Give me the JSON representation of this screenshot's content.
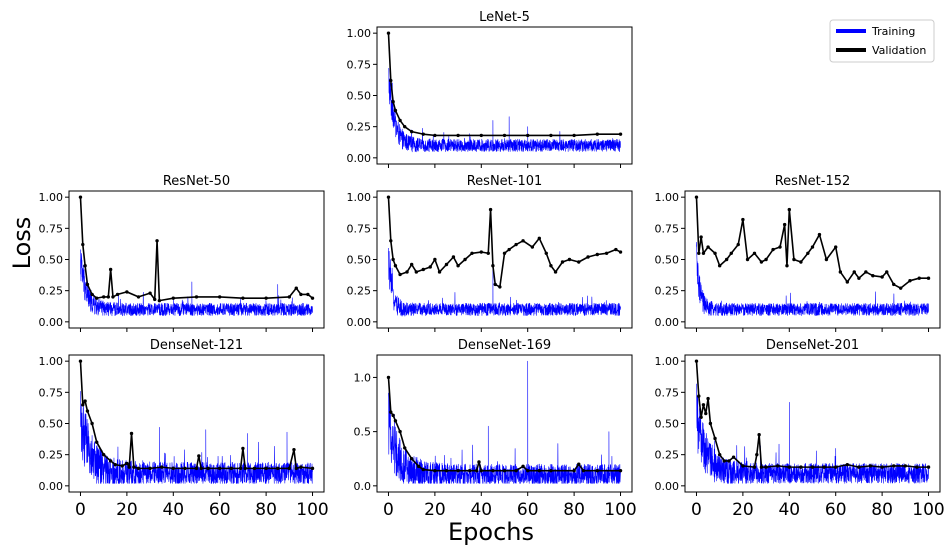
{
  "figure": {
    "ylabel": "Loss",
    "xlabel": "Epochs",
    "legend": {
      "placement": "top-right",
      "entries": [
        {
          "label": "Training",
          "color": "#0000ff"
        },
        {
          "label": "Validation",
          "color": "#000000"
        }
      ]
    }
  },
  "chart_data": [
    {
      "type": "line",
      "title": "LeNet-5",
      "xlim": [
        0,
        100
      ],
      "ylim": [
        0,
        1
      ],
      "yticks": [
        "0.00",
        "0.25",
        "0.50",
        "0.75",
        "1.00"
      ],
      "series": [
        {
          "name": "Training",
          "color": "#0000ff",
          "style": "noisy",
          "base": 0.1,
          "start": 0.65,
          "decay": 2.5,
          "noise": 0.05,
          "spikes": [
            [
              45,
              0.3
            ],
            [
              52,
              0.33
            ],
            [
              60,
              0.25
            ]
          ]
        },
        {
          "name": "Validation",
          "color": "#000000",
          "x": [
            0,
            1,
            2,
            3,
            5,
            7,
            10,
            15,
            20,
            30,
            40,
            50,
            60,
            70,
            80,
            90,
            100
          ],
          "y": [
            1.0,
            0.62,
            0.45,
            0.38,
            0.3,
            0.25,
            0.21,
            0.19,
            0.18,
            0.18,
            0.18,
            0.18,
            0.18,
            0.18,
            0.18,
            0.19,
            0.19
          ]
        }
      ]
    },
    {
      "type": "line",
      "title": "ResNet-50",
      "xlim": [
        0,
        100
      ],
      "ylim": [
        0,
        1
      ],
      "yticks": [
        "0.00",
        "0.25",
        "0.50",
        "0.75",
        "1.00"
      ],
      "series": [
        {
          "name": "Training",
          "color": "#0000ff",
          "style": "noisy",
          "base": 0.1,
          "start": 0.5,
          "decay": 2.5,
          "noise": 0.05,
          "spikes": [
            [
              48,
              0.32
            ],
            [
              85,
              0.3
            ]
          ]
        },
        {
          "name": "Validation",
          "color": "#000000",
          "x": [
            0,
            1,
            2,
            3,
            5,
            7,
            10,
            12,
            13,
            14,
            16,
            20,
            25,
            30,
            32,
            33,
            34,
            40,
            50,
            60,
            70,
            80,
            90,
            93,
            95,
            98,
            100
          ],
          "y": [
            1.0,
            0.62,
            0.45,
            0.3,
            0.22,
            0.19,
            0.2,
            0.2,
            0.42,
            0.2,
            0.22,
            0.24,
            0.2,
            0.23,
            0.18,
            0.65,
            0.17,
            0.19,
            0.2,
            0.2,
            0.19,
            0.19,
            0.2,
            0.27,
            0.22,
            0.22,
            0.19
          ]
        }
      ]
    },
    {
      "type": "line",
      "title": "ResNet-101",
      "xlim": [
        0,
        100
      ],
      "ylim": [
        0,
        1
      ],
      "yticks": [
        "0.00",
        "0.25",
        "0.50",
        "0.75",
        "1.00"
      ],
      "series": [
        {
          "name": "Training",
          "color": "#0000ff",
          "style": "noisy",
          "base": 0.1,
          "start": 0.5,
          "decay": 1.5,
          "noise": 0.05,
          "spikes": [
            [
              45,
              0.45
            ]
          ]
        },
        {
          "name": "Validation",
          "color": "#000000",
          "x": [
            0,
            1,
            2,
            3,
            5,
            8,
            10,
            12,
            15,
            18,
            20,
            22,
            25,
            28,
            30,
            33,
            36,
            40,
            43,
            44,
            45,
            46,
            48,
            50,
            52,
            55,
            58,
            62,
            65,
            68,
            70,
            72,
            75,
            78,
            82,
            86,
            90,
            94,
            98,
            100
          ],
          "y": [
            1.0,
            0.65,
            0.5,
            0.45,
            0.38,
            0.4,
            0.46,
            0.4,
            0.42,
            0.44,
            0.5,
            0.4,
            0.46,
            0.52,
            0.45,
            0.5,
            0.55,
            0.56,
            0.55,
            0.9,
            0.45,
            0.3,
            0.28,
            0.55,
            0.58,
            0.62,
            0.65,
            0.6,
            0.67,
            0.55,
            0.45,
            0.4,
            0.48,
            0.5,
            0.48,
            0.52,
            0.54,
            0.55,
            0.58,
            0.56
          ]
        }
      ]
    },
    {
      "type": "line",
      "title": "ResNet-152",
      "xlim": [
        0,
        100
      ],
      "ylim": [
        0,
        1
      ],
      "yticks": [
        "0.00",
        "0.25",
        "0.50",
        "0.75",
        "1.00"
      ],
      "series": [
        {
          "name": "Training",
          "color": "#0000ff",
          "style": "noisy",
          "base": 0.1,
          "start": 0.5,
          "decay": 1.5,
          "noise": 0.05,
          "spikes": []
        },
        {
          "name": "Validation",
          "color": "#000000",
          "x": [
            0,
            1,
            2,
            3,
            5,
            8,
            10,
            13,
            15,
            18,
            20,
            22,
            25,
            28,
            30,
            33,
            36,
            38,
            39,
            40,
            42,
            45,
            48,
            50,
            53,
            56,
            60,
            62,
            65,
            68,
            70,
            73,
            76,
            80,
            82,
            85,
            88,
            92,
            96,
            100
          ],
          "y": [
            1.0,
            0.55,
            0.68,
            0.55,
            0.6,
            0.55,
            0.45,
            0.5,
            0.55,
            0.62,
            0.82,
            0.5,
            0.55,
            0.48,
            0.5,
            0.58,
            0.6,
            0.78,
            0.45,
            0.9,
            0.5,
            0.48,
            0.55,
            0.6,
            0.7,
            0.5,
            0.6,
            0.4,
            0.32,
            0.4,
            0.35,
            0.4,
            0.37,
            0.36,
            0.4,
            0.3,
            0.27,
            0.33,
            0.35,
            0.35
          ]
        }
      ]
    },
    {
      "type": "line",
      "title": "DenseNet-121",
      "xlim": [
        0,
        100
      ],
      "ylim": [
        0,
        1
      ],
      "xticks": [
        "0",
        "20",
        "40",
        "60",
        "80",
        "100"
      ],
      "yticks": [
        "0.00",
        "0.25",
        "0.50",
        "0.75",
        "1.00"
      ],
      "series": [
        {
          "name": "Training",
          "color": "#0000ff",
          "style": "noisy",
          "base": 0.1,
          "start": 0.55,
          "decay": 4,
          "noise": 0.09,
          "spikes": [
            [
              34,
              0.47
            ],
            [
              54,
              0.45
            ],
            [
              72,
              0.42
            ],
            [
              89,
              0.43
            ]
          ]
        },
        {
          "name": "Validation",
          "color": "#000000",
          "x": [
            0,
            1,
            2,
            3,
            5,
            7,
            10,
            13,
            15,
            18,
            20,
            21,
            22,
            23,
            25,
            30,
            35,
            40,
            45,
            50,
            51,
            52,
            55,
            60,
            65,
            69,
            70,
            71,
            75,
            80,
            85,
            90,
            92,
            93,
            95,
            100
          ],
          "y": [
            1.0,
            0.65,
            0.68,
            0.6,
            0.5,
            0.35,
            0.25,
            0.2,
            0.17,
            0.16,
            0.18,
            0.15,
            0.42,
            0.15,
            0.14,
            0.14,
            0.15,
            0.14,
            0.14,
            0.14,
            0.24,
            0.14,
            0.14,
            0.14,
            0.14,
            0.14,
            0.3,
            0.14,
            0.14,
            0.14,
            0.14,
            0.14,
            0.29,
            0.14,
            0.15,
            0.14
          ]
        }
      ]
    },
    {
      "type": "line",
      "title": "DenseNet-169",
      "xlim": [
        0,
        100
      ],
      "ylim": [
        0,
        1.15
      ],
      "xticks": [
        "0",
        "20",
        "40",
        "60",
        "80",
        "100"
      ],
      "yticks": [
        "0.0",
        "0.5",
        "1.0"
      ],
      "series": [
        {
          "name": "Training",
          "color": "#0000ff",
          "style": "noisy",
          "base": 0.1,
          "start": 0.6,
          "decay": 4,
          "noise": 0.1,
          "spikes": [
            [
              60,
              1.15
            ],
            [
              43,
              0.55
            ],
            [
              95,
              0.5
            ]
          ]
        },
        {
          "name": "Validation",
          "color": "#000000",
          "x": [
            0,
            1,
            2,
            3,
            5,
            7,
            10,
            13,
            15,
            20,
            25,
            30,
            35,
            38,
            39,
            40,
            45,
            50,
            55,
            58,
            60,
            65,
            70,
            80,
            82,
            84,
            90,
            100
          ],
          "y": [
            1.0,
            0.68,
            0.65,
            0.6,
            0.5,
            0.35,
            0.25,
            0.18,
            0.15,
            0.14,
            0.14,
            0.14,
            0.14,
            0.14,
            0.22,
            0.14,
            0.14,
            0.14,
            0.14,
            0.18,
            0.14,
            0.14,
            0.14,
            0.14,
            0.2,
            0.14,
            0.14,
            0.14
          ]
        }
      ]
    },
    {
      "type": "line",
      "title": "DenseNet-201",
      "xlim": [
        0,
        100
      ],
      "ylim": [
        0,
        1
      ],
      "xticks": [
        "0",
        "20",
        "40",
        "60",
        "80",
        "100"
      ],
      "yticks": [
        "0.00",
        "0.25",
        "0.50",
        "0.75",
        "1.00"
      ],
      "series": [
        {
          "name": "Training",
          "color": "#0000ff",
          "style": "noisy",
          "base": 0.1,
          "start": 0.55,
          "decay": 4,
          "noise": 0.08,
          "spikes": [
            [
              40,
              0.67
            ],
            [
              60,
              0.3
            ]
          ]
        },
        {
          "name": "Validation",
          "color": "#000000",
          "x": [
            0,
            1,
            2,
            3,
            4,
            5,
            6,
            8,
            10,
            12,
            14,
            16,
            20,
            25,
            26,
            27,
            28,
            30,
            35,
            40,
            45,
            50,
            55,
            60,
            65,
            70,
            75,
            80,
            85,
            90,
            95,
            100
          ],
          "y": [
            1.0,
            0.72,
            0.55,
            0.65,
            0.58,
            0.7,
            0.5,
            0.38,
            0.25,
            0.2,
            0.2,
            0.23,
            0.16,
            0.15,
            0.25,
            0.41,
            0.15,
            0.15,
            0.16,
            0.15,
            0.15,
            0.15,
            0.15,
            0.15,
            0.17,
            0.15,
            0.16,
            0.15,
            0.16,
            0.16,
            0.15,
            0.15
          ]
        }
      ]
    }
  ]
}
